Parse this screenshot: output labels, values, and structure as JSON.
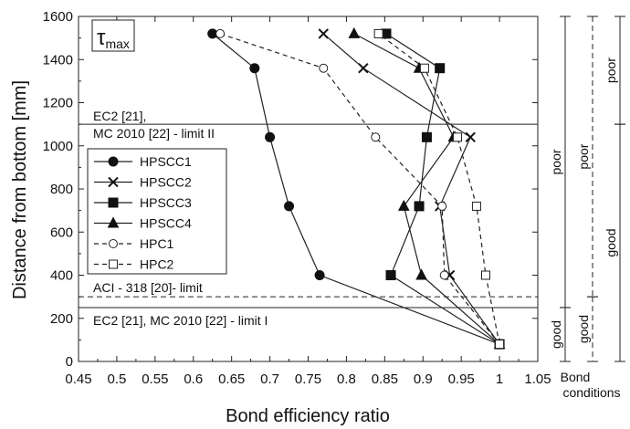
{
  "chart_data": {
    "type": "line",
    "title": "τmax",
    "title_main": "τ",
    "title_sub": "max",
    "xlabel": "Bond efficiency ratio",
    "ylabel": "Distance from bottom [mm]",
    "xlim": [
      0.45,
      1.05
    ],
    "ylim": [
      0,
      1600
    ],
    "xticks": [
      "0.45",
      "0.5",
      "0.55",
      "0.6",
      "0.65",
      "0.7",
      "0.75",
      "0.8",
      "0.85",
      "0.9",
      "0.95",
      "1",
      "1.05"
    ],
    "yticks": [
      "0",
      "200",
      "400",
      "600",
      "800",
      "1000",
      "1200",
      "1400",
      "1600"
    ],
    "grid": false,
    "legend_position": "left",
    "series": [
      {
        "name": "HPSCC1",
        "marker": "circle",
        "style": "solid",
        "x": [
          1.0,
          0.765,
          0.725,
          0.7,
          0.68,
          0.625
        ],
        "y": [
          80,
          400,
          720,
          1040,
          1360,
          1520
        ]
      },
      {
        "name": "HPSCC2",
        "marker": "x",
        "style": "solid",
        "x": [
          1.0,
          0.935,
          0.922,
          0.962,
          0.822,
          0.77
        ],
        "y": [
          80,
          400,
          720,
          1040,
          1360,
          1520
        ]
      },
      {
        "name": "HPSCC3",
        "marker": "square",
        "style": "solid",
        "x": [
          1.0,
          0.858,
          0.895,
          0.905,
          0.922,
          0.852
        ],
        "y": [
          80,
          400,
          720,
          1040,
          1360,
          1520
        ]
      },
      {
        "name": "HPSCC4",
        "marker": "triangle",
        "style": "solid",
        "x": [
          1.0,
          0.898,
          0.875,
          0.94,
          0.895,
          0.81
        ],
        "y": [
          80,
          400,
          720,
          1040,
          1360,
          1520
        ]
      },
      {
        "name": "HPC1",
        "marker": "open-circle",
        "style": "dashed",
        "x": [
          1.0,
          0.928,
          0.925,
          0.838,
          0.77,
          0.635
        ],
        "y": [
          80,
          400,
          720,
          1040,
          1360,
          1520
        ]
      },
      {
        "name": "HPC2",
        "marker": "open-square",
        "style": "dashed",
        "x": [
          1.0,
          0.982,
          0.97,
          0.945,
          0.902,
          0.842
        ],
        "y": [
          80,
          400,
          720,
          1040,
          1360,
          1520
        ]
      }
    ],
    "reference_lines": [
      {
        "y": 1100,
        "style": "solid",
        "label_lines": [
          "EC2 [21],",
          "MC 2010 [22] - limit II"
        ]
      },
      {
        "y": 300,
        "style": "dashed",
        "label_lines": [
          "ACI - 318 [20]- limit"
        ]
      },
      {
        "y": 250,
        "style": "solid",
        "label_lines": [
          "EC2 [21], MC 2010 [22] - limit I"
        ]
      }
    ],
    "bond_conditions": {
      "header_lines": [
        "Bond",
        "conditions"
      ],
      "columns": [
        {
          "style": "solid",
          "segments": [
            {
              "y0": 0,
              "y1": 250,
              "label": "good"
            },
            {
              "y0": 250,
              "y1": 1600,
              "label": "poor"
            }
          ]
        },
        {
          "style": "dashed",
          "segments": [
            {
              "y0": 0,
              "y1": 300,
              "label": "good"
            },
            {
              "y0": 300,
              "y1": 1600,
              "label": "poor"
            }
          ]
        },
        {
          "style": "solid",
          "segments": [
            {
              "y0": 0,
              "y1": 1100,
              "label": "good"
            },
            {
              "y0": 1100,
              "y1": 1600,
              "label": "poor"
            }
          ]
        }
      ]
    }
  }
}
